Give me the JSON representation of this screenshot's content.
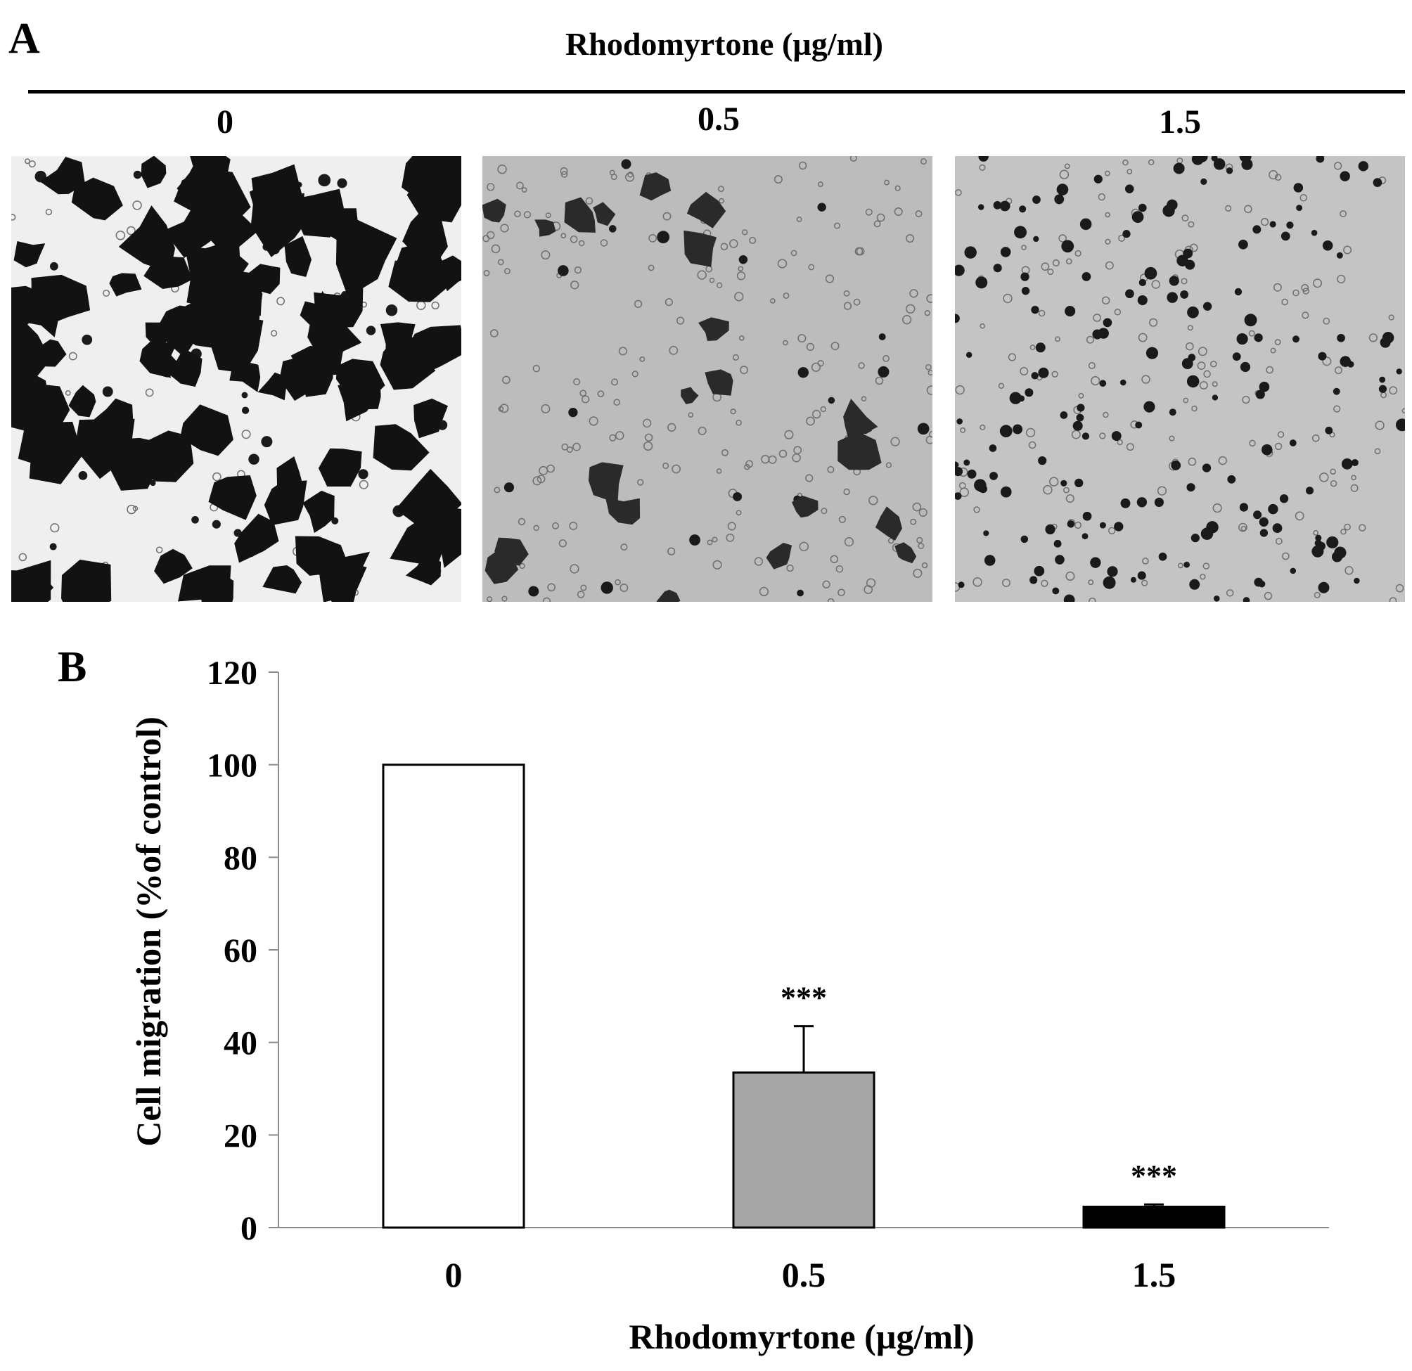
{
  "panel_a": {
    "letter": "A",
    "title": "Rhodomyrtone  (µg/ml)",
    "images": [
      {
        "label": "0",
        "cell_density": "dense"
      },
      {
        "label": "0.5",
        "cell_density": "sparse"
      },
      {
        "label": "1.5",
        "cell_density": "very-sparse"
      }
    ]
  },
  "panel_b": {
    "letter": "B"
  },
  "chart_data": {
    "type": "bar",
    "categories": [
      "0",
      "0.5",
      "1.5"
    ],
    "values": [
      100,
      33.5,
      4.5
    ],
    "errors": [
      0,
      10,
      0.5
    ],
    "significance": [
      "",
      "***",
      "***"
    ],
    "bar_colors": [
      "#ffffff",
      "#a6a6a6",
      "#000000"
    ],
    "ylabel": "Cell migration (%of control)",
    "xlabel": "Rhodomyrtone (µg/ml)",
    "ylim": [
      0,
      120
    ],
    "yticks": [
      0,
      20,
      40,
      60,
      80,
      100,
      120
    ],
    "grid": false,
    "legend": "none"
  }
}
